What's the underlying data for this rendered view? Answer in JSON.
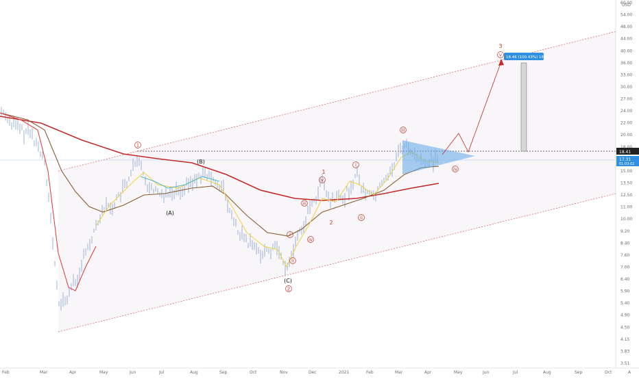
{
  "chart_data": {
    "type": "line",
    "currency": "USD",
    "y_scale": "log",
    "y_ticks": [
      "60.00",
      "54.00",
      "48.00",
      "44.00",
      "40.00",
      "36.00",
      "33.00",
      "30.00",
      "27.00",
      "24.00",
      "22.00",
      "20.00",
      "18.00",
      "16.50",
      "15.00",
      "13.50",
      "12.50",
      "11.00",
      "10.00",
      "9.20",
      "8.40",
      "7.60",
      "7.00",
      "6.40",
      "5.90",
      "5.40",
      "4.90",
      "4.50",
      "4.15",
      "3.83",
      "3.51"
    ],
    "x_ticks": [
      "Feb",
      "Mar",
      "Apr",
      "May",
      "Jun",
      "Jul",
      "Aug",
      "Sep",
      "Oct",
      "Nov",
      "Dec",
      "2021",
      "Feb",
      "Mar",
      "Apr",
      "May",
      "Jun",
      "Jul",
      "Aug",
      "Sep",
      "Oct"
    ],
    "price_labels": {
      "level": "18.41",
      "current": "17.31",
      "countdown": "01:03:02"
    },
    "target_label": "18.46 (100.43%) 1846",
    "wave_labels": [
      {
        "text": "1",
        "style": "red-circle"
      },
      {
        "text": "(B)",
        "style": "black"
      },
      {
        "text": "(A)",
        "style": "black"
      },
      {
        "text": "(C)",
        "style": "black"
      },
      {
        "text": "2",
        "style": "red-circle"
      },
      {
        "text": "i",
        "style": "red-circle"
      },
      {
        "text": "ii",
        "style": "red-circle"
      },
      {
        "text": "iii",
        "style": "red-circle"
      },
      {
        "text": "iv",
        "style": "red-circle"
      },
      {
        "text": "v",
        "style": "red-circle"
      },
      {
        "text": "1",
        "style": "red"
      },
      {
        "text": "2",
        "style": "red"
      },
      {
        "text": "i",
        "style": "red-circle"
      },
      {
        "text": "ii",
        "style": "red-circle"
      },
      {
        "text": "iii",
        "style": "red-circle"
      },
      {
        "text": "iv",
        "style": "red-circle"
      },
      {
        "text": "3",
        "style": "red"
      },
      {
        "text": "v",
        "style": "red-circle"
      }
    ],
    "bottom_right_marker": "A",
    "colors": {
      "ma_short": "#e04545",
      "ma_long": "#c62828",
      "ma_mid": "#8b5a2b",
      "ma_fast": "#f0d23c",
      "candles": "#9bb3d9",
      "triangle": "#5fa8e8",
      "target_badge": "#2f8fe0"
    },
    "candles_summary": "OHLC bars"
  }
}
